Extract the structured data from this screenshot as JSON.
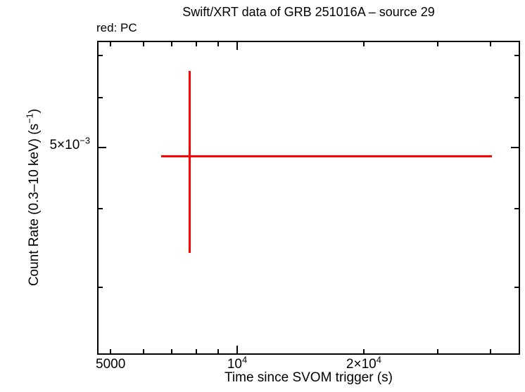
{
  "chart_data": {
    "type": "scatter",
    "title": "Swift/XRT data of GRB 251016A – source 29",
    "mode_label": "red: PC",
    "xlabel": "Time since SVOM trigger (s)",
    "ylabel": "Count Rate (0.3–10 keV) (s^{−1})",
    "xscale": "log",
    "yscale": "log",
    "xlim": [
      4680,
      46700
    ],
    "ylim": [
      0.00236,
      0.00734
    ],
    "grid": false,
    "legend_position": "top-left-above-frame",
    "x_ticks": [
      {
        "value": 5000,
        "label": "5000",
        "major": false
      },
      {
        "value": 6000
      },
      {
        "value": 7000
      },
      {
        "value": 8000
      },
      {
        "value": 9000
      },
      {
        "value": 10000,
        "label": "10^{4}",
        "major": true
      },
      {
        "value": 20000,
        "label": "2×10^{4}",
        "major": false
      },
      {
        "value": 30000
      },
      {
        "value": 40000
      }
    ],
    "y_ticks": [
      {
        "value": 0.003
      },
      {
        "value": 0.004
      },
      {
        "value": 0.005,
        "label": "5×10^{−3}",
        "major": true
      },
      {
        "value": 0.006
      },
      {
        "value": 0.007
      }
    ],
    "series": [
      {
        "name": "PC",
        "color": "#ff0000",
        "points": [
          {
            "x": 7700,
            "x_low": 6600,
            "x_high": 40400,
            "y": 0.00485,
            "y_low": 0.0034,
            "y_high": 0.0066
          }
        ]
      }
    ],
    "frame_color": "#000000",
    "background_color": "#ffffff"
  }
}
